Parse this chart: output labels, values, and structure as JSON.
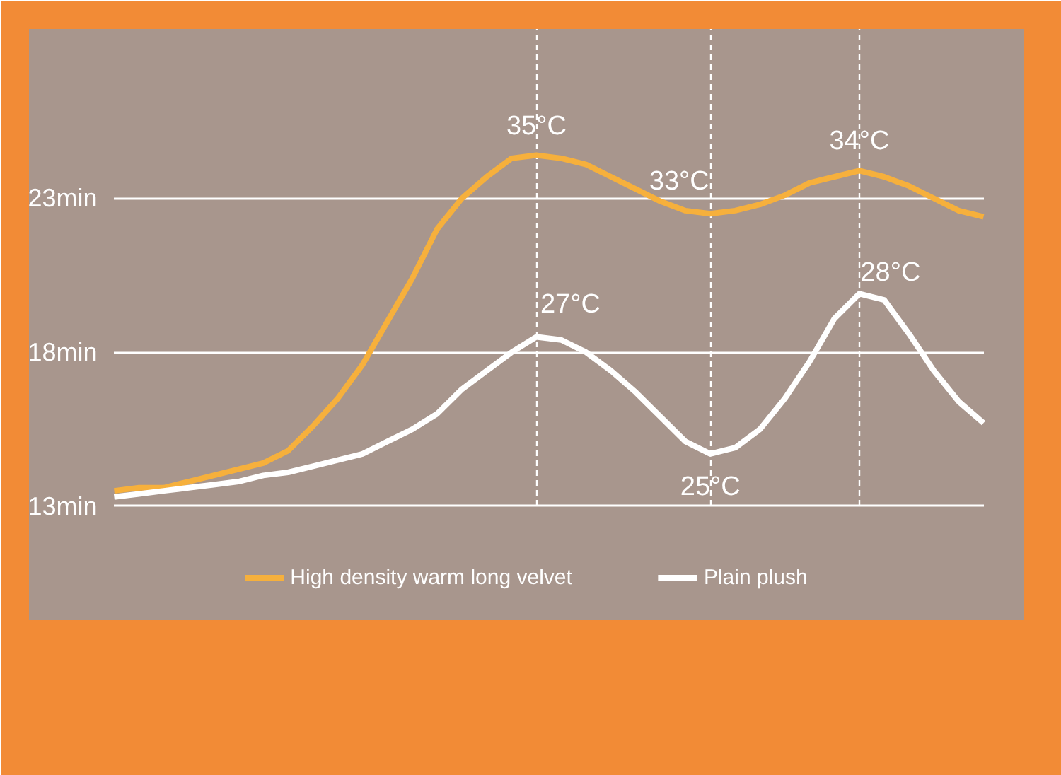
{
  "chart_data": {
    "type": "line",
    "categories": [
      null,
      null,
      null,
      null,
      null,
      null,
      null,
      null,
      null,
      null,
      null,
      null,
      null,
      null,
      null,
      null,
      null,
      null,
      null,
      null,
      null,
      null,
      null,
      null,
      null,
      null,
      null,
      null,
      null,
      null,
      null,
      null,
      null,
      null,
      null,
      null
    ],
    "ylim": [
      9.3,
      28.5
    ],
    "yticks": [
      {
        "value": 13,
        "label": "13min"
      },
      {
        "value": 18,
        "label": "18min"
      },
      {
        "value": 23,
        "label": "23min"
      }
    ],
    "grid": true,
    "legend": "bottom",
    "marker": "none",
    "line_style": "solid",
    "series": [
      {
        "name": "High density warm long velvet",
        "color": "#f6b03c",
        "values": [
          13.5,
          13.6,
          13.6,
          13.8,
          14.0,
          14.2,
          14.4,
          14.8,
          15.6,
          16.5,
          17.6,
          19.0,
          20.4,
          22.0,
          23.0,
          23.7,
          24.3,
          24.4,
          24.3,
          24.1,
          23.7,
          23.3,
          22.9,
          22.6,
          22.5,
          22.6,
          22.8,
          23.1,
          23.5,
          23.7,
          23.9,
          23.7,
          23.4,
          23.0,
          22.6,
          22.4
        ]
      },
      {
        "name": "Plain plush",
        "color": "#ffffff",
        "values": [
          13.3,
          13.4,
          13.5,
          13.6,
          13.7,
          13.8,
          14.0,
          14.1,
          14.3,
          14.5,
          14.7,
          15.1,
          15.5,
          16.0,
          16.8,
          17.4,
          18.0,
          18.5,
          18.4,
          18.0,
          17.4,
          16.7,
          15.9,
          15.1,
          14.7,
          14.9,
          15.5,
          16.5,
          17.7,
          19.1,
          19.9,
          19.7,
          18.6,
          17.4,
          16.4,
          15.7
        ]
      }
    ],
    "annotations": [
      {
        "text": "35°C",
        "y": 24.4
      },
      {
        "text": "33°C",
        "y": 22.5
      },
      {
        "text": "34°C",
        "y": 23.9
      },
      {
        "text": "27°C",
        "y": 18.5
      },
      {
        "text": "25°C",
        "y": 14.7
      },
      {
        "text": "28°C",
        "y": 19.9
      }
    ]
  }
}
